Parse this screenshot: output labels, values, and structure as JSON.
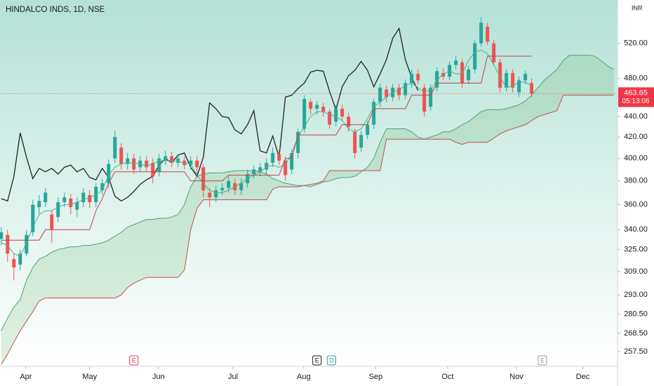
{
  "chart_data": {
    "type": "candlestick",
    "title": "HINDALCO INDS, 1D, NSE",
    "currency": "INR",
    "countdown": "05:13:06",
    "log": true,
    "grid": false,
    "up_color": "#26a69a",
    "down_color": "#ef5350",
    "ylim": [
      249,
      574
    ],
    "yticks": [
      {
        "value": 520,
        "label": "520.00"
      },
      {
        "value": 480,
        "label": "480.00"
      },
      {
        "value": 440,
        "label": "440.00"
      },
      {
        "value": 420,
        "label": "420.00"
      },
      {
        "value": 400,
        "label": "400.00"
      },
      {
        "value": 380,
        "label": "380.00"
      },
      {
        "value": 360,
        "label": "360.00"
      },
      {
        "value": 340,
        "label": "340.00"
      },
      {
        "value": 325,
        "label": "325.00"
      },
      {
        "value": 309,
        "label": "309.00"
      },
      {
        "value": 293,
        "label": "293.00"
      },
      {
        "value": 280.5,
        "label": "280.50"
      },
      {
        "value": 268.5,
        "label": "268.50"
      },
      {
        "value": 257.5,
        "label": "257.50"
      }
    ],
    "xlim": [
      -0.2,
      97.6
    ],
    "xticks": [
      {
        "value": 3.9,
        "label": "Apr"
      },
      {
        "value": 14,
        "label": "May"
      },
      {
        "value": 24.9,
        "label": "Jun"
      },
      {
        "value": 36.7,
        "label": "Jul"
      },
      {
        "value": 47.9,
        "label": "Aug"
      },
      {
        "value": 59.3,
        "label": "Sep"
      },
      {
        "value": 70.7,
        "label": "Oct"
      },
      {
        "value": 81.6,
        "label": "Nov"
      },
      {
        "value": 92.1,
        "label": "Dec"
      }
    ],
    "markers": [
      {
        "label": "E",
        "x": 21,
        "color": "#f23645"
      },
      {
        "label": "E",
        "x": 50,
        "color": "#131722"
      },
      {
        "label": "D",
        "x": 52.3,
        "color": "#26a69a"
      },
      {
        "label": "E",
        "x": 85.7,
        "color": "#9598a1"
      }
    ],
    "open": [
      333,
      336,
      318,
      314,
      322,
      338,
      358,
      362,
      352,
      350,
      362,
      365,
      356,
      362,
      368,
      362,
      372,
      378,
      400,
      410,
      395,
      400,
      392,
      398,
      396,
      388,
      398,
      402,
      396,
      398,
      394,
      398,
      392,
      370,
      366,
      372,
      374,
      378,
      372,
      378,
      386,
      388,
      390,
      396,
      404,
      398,
      390,
      405,
      428,
      455,
      448,
      450,
      445,
      435,
      448,
      440,
      425,
      410,
      422,
      432,
      455,
      468,
      460,
      470,
      462,
      475,
      485,
      470,
      450,
      470,
      486,
      482,
      495,
      498,
      478,
      490,
      520,
      540,
      520,
      498,
      470,
      486,
      465,
      478,
      475,
      null,
      null,
      null,
      null,
      null,
      null,
      null,
      null,
      null,
      null,
      null,
      null,
      null
    ],
    "high": [
      342,
      340,
      322,
      325,
      340,
      364,
      368,
      374,
      355,
      366,
      370,
      369,
      366,
      374,
      372,
      378,
      382,
      399,
      426,
      414,
      405,
      404,
      402,
      402,
      400,
      404,
      407,
      406,
      404,
      402,
      402,
      402,
      395,
      374,
      376,
      378,
      384,
      382,
      382,
      390,
      394,
      396,
      400,
      410,
      408,
      402,
      408,
      428,
      462,
      458,
      456,
      454,
      448,
      452,
      452,
      444,
      428,
      426,
      436,
      458,
      474,
      472,
      474,
      474,
      479,
      490,
      490,
      474,
      474,
      492,
      491,
      499,
      505,
      502,
      494,
      524,
      552,
      545,
      524,
      502,
      490,
      490,
      482,
      489,
      480,
      null,
      null,
      null,
      null,
      null,
      null,
      null,
      null,
      null,
      null,
      null,
      null,
      null
    ],
    "low": [
      328,
      316,
      303,
      310,
      320,
      335,
      352,
      358,
      330,
      346,
      358,
      352,
      350,
      358,
      357,
      358,
      368,
      374,
      396,
      390,
      390,
      386,
      388,
      388,
      378,
      384,
      394,
      392,
      392,
      390,
      390,
      386,
      366,
      358,
      362,
      368,
      370,
      368,
      368,
      374,
      382,
      384,
      386,
      392,
      394,
      380,
      386,
      400,
      424,
      442,
      442,
      440,
      428,
      430,
      436,
      425,
      400,
      406,
      418,
      428,
      450,
      455,
      456,
      457,
      458,
      470,
      474,
      440,
      446,
      466,
      478,
      478,
      490,
      470,
      474,
      486,
      516,
      518,
      494,
      465,
      466,
      465,
      460,
      474,
      460,
      null,
      null,
      null,
      null,
      null,
      null,
      null,
      null,
      null,
      null,
      null,
      null,
      null
    ],
    "close": [
      338,
      322,
      312,
      322,
      336,
      360,
      363,
      370,
      340,
      362,
      366,
      358,
      362,
      370,
      362,
      375,
      378,
      395,
      420,
      395,
      400,
      390,
      398,
      392,
      384,
      400,
      402,
      396,
      400,
      394,
      398,
      392,
      372,
      366,
      372,
      374,
      380,
      372,
      378,
      386,
      390,
      392,
      396,
      405,
      398,
      385,
      405,
      425,
      458,
      448,
      452,
      445,
      432,
      448,
      440,
      430,
      405,
      422,
      432,
      455,
      470,
      460,
      470,
      462,
      475,
      485,
      478,
      445,
      470,
      488,
      482,
      495,
      500,
      475,
      490,
      520,
      545,
      522,
      498,
      470,
      486,
      470,
      478,
      485,
      463.65,
      null,
      null,
      null,
      null,
      null,
      null,
      null,
      null,
      null,
      null,
      null,
      null,
      null
    ],
    "conversion_line": {
      "color": "#4caf8e",
      "values": [
        330,
        328,
        322,
        320,
        330,
        342,
        352,
        355,
        355,
        358,
        360,
        360,
        362,
        364,
        366,
        368,
        372,
        385,
        392,
        395,
        396,
        396,
        395,
        393,
        395,
        398,
        398,
        398,
        397,
        396,
        395,
        385,
        378,
        372,
        370,
        370,
        372,
        375,
        378,
        382,
        385,
        388,
        392,
        394,
        392,
        394,
        405,
        420,
        430,
        440,
        445,
        445,
        442,
        440,
        436,
        428,
        425,
        428,
        438,
        450,
        455,
        460,
        465,
        468,
        472,
        475,
        470,
        465,
        468,
        478,
        485,
        488,
        485,
        485,
        500,
        510,
        512,
        508,
        495,
        482,
        470,
        472,
        476,
        476,
        472,
        null,
        null,
        null,
        null,
        null,
        null,
        null,
        null,
        null,
        null,
        null,
        null,
        null
      ]
    },
    "base_line": {
      "color": "#c2424b",
      "values": [
        332,
        332,
        332,
        332,
        332,
        332,
        332,
        340,
        340,
        340,
        340,
        340,
        340,
        340,
        340,
        355,
        365,
        378,
        388,
        388,
        388,
        388,
        388,
        388,
        388,
        388,
        388,
        388,
        388,
        388,
        380,
        380,
        380,
        380,
        380,
        380,
        385,
        385,
        385,
        385,
        385,
        385,
        385,
        385,
        385,
        400,
        400,
        422,
        422,
        422,
        422,
        422,
        422,
        422,
        432,
        432,
        432,
        432,
        432,
        448,
        448,
        448,
        448,
        448,
        448,
        462,
        462,
        462,
        462,
        475,
        475,
        475,
        475,
        475,
        475,
        475,
        475,
        505,
        505,
        505,
        505,
        505,
        505,
        505,
        505,
        null,
        null,
        null,
        null,
        null,
        null,
        null,
        null,
        null,
        null,
        null,
        null,
        null
      ]
    },
    "lagging_span": {
      "color": "#222222",
      "values": [
        365,
        363,
        384,
        424,
        401,
        382,
        391,
        388,
        391,
        386,
        392,
        394,
        388,
        391,
        383,
        381,
        391,
        383,
        367,
        363,
        366,
        371,
        377,
        381,
        384,
        394,
        400,
        396,
        403,
        405,
        392,
        384,
        401,
        454,
        448,
        440,
        439,
        427,
        423,
        432,
        446,
        407,
        405,
        421,
        401,
        460,
        462,
        469,
        475,
        487,
        489,
        488,
        466,
        447,
        471,
        483,
        489,
        499,
        489,
        471,
        485,
        501,
        526,
        538,
        501,
        481,
        467,
        null,
        null,
        null,
        null,
        null,
        null,
        null,
        null,
        null,
        null,
        null,
        null,
        null,
        null,
        null,
        null,
        null,
        null,
        null,
        null,
        null,
        null,
        null,
        null,
        null,
        null,
        null,
        null,
        null,
        null,
        null
      ]
    },
    "leading_span_a": {
      "color": "#4aa37f",
      "values": [
        270,
        278,
        285,
        290,
        303,
        312,
        318,
        320,
        323,
        325,
        326,
        327,
        327,
        328,
        328,
        329,
        330,
        332,
        335,
        338,
        342,
        344,
        346,
        348,
        348,
        349,
        349,
        350,
        352,
        360,
        375,
        384,
        386,
        387,
        387,
        387,
        388,
        389,
        389,
        389,
        389,
        388,
        386,
        382,
        380,
        378,
        377,
        376,
        376,
        375,
        377,
        379,
        380,
        382,
        383,
        383,
        384,
        388,
        392,
        400,
        415,
        428,
        428,
        428,
        428,
        425,
        420,
        418,
        420,
        422,
        425,
        425,
        428,
        432,
        435,
        440,
        445,
        447,
        447,
        447,
        448,
        450,
        452,
        456,
        462,
        470,
        478,
        484,
        490,
        500,
        506,
        506,
        506,
        506,
        505,
        500,
        494,
        490
      ]
    },
    "leading_span_b": {
      "color": "#c0504d",
      "values": [
        250,
        256,
        263,
        270,
        276,
        282,
        289,
        291,
        291,
        291,
        291,
        291,
        291,
        291,
        291,
        291,
        291,
        291,
        291,
        293,
        298,
        301,
        303,
        305,
        305,
        305,
        305,
        305,
        305,
        310,
        340,
        357,
        364,
        364,
        364,
        364,
        364,
        364,
        364,
        364,
        364,
        364,
        364,
        373,
        375,
        375,
        375,
        375,
        376,
        377,
        378,
        380,
        389,
        389,
        389,
        389,
        389,
        389,
        389,
        389,
        389,
        418,
        418,
        418,
        418,
        418,
        418,
        418,
        418,
        418,
        418,
        418,
        415,
        413,
        415,
        415,
        415,
        415,
        419,
        423,
        426,
        428,
        430,
        432,
        436,
        440,
        442,
        444,
        446,
        462,
        462,
        462,
        462,
        462,
        462,
        462,
        462,
        462
      ]
    },
    "cloud_color": "#43a047"
  }
}
